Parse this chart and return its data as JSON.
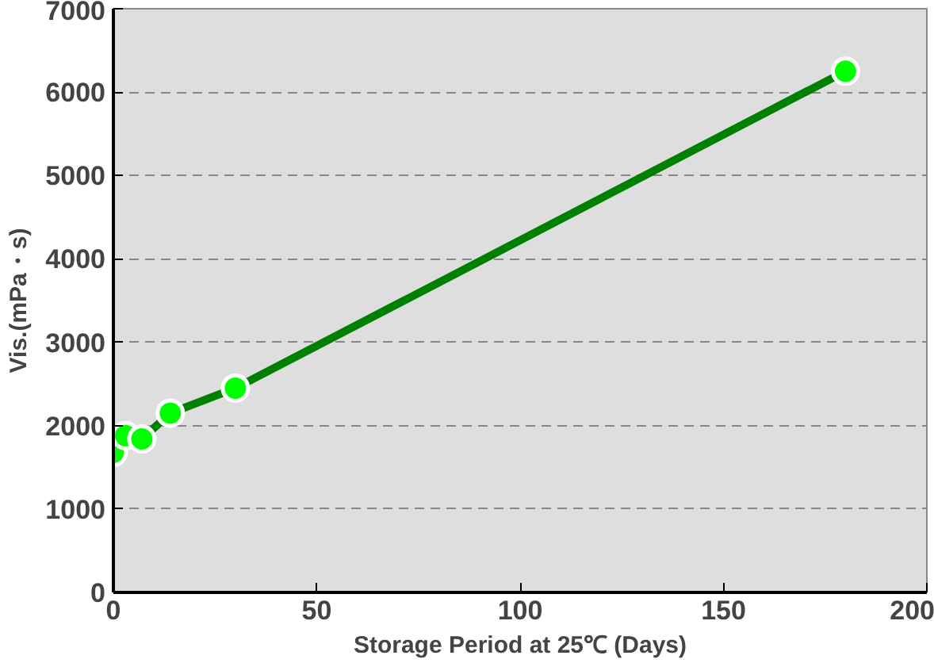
{
  "chart_data": {
    "type": "line",
    "xlabel": "Storage Period at 25℃ (Days)",
    "ylabel": "Vis.(mPa・s)",
    "x": [
      0,
      3,
      7,
      14,
      30,
      180
    ],
    "series": [
      {
        "color": "#00ff00",
        "values": [
          1680,
          1880,
          1840,
          2150,
          2450,
          6250
        ]
      }
    ],
    "xlim": [
      0,
      200
    ],
    "xticks": [
      0,
      50,
      100,
      150,
      200
    ],
    "ylim": [
      0,
      7000
    ],
    "yticks": [
      0,
      1000,
      2000,
      3000,
      4000,
      5000,
      6000,
      7000
    ],
    "grid": "y",
    "marker": "circle",
    "line_style": "solid"
  }
}
